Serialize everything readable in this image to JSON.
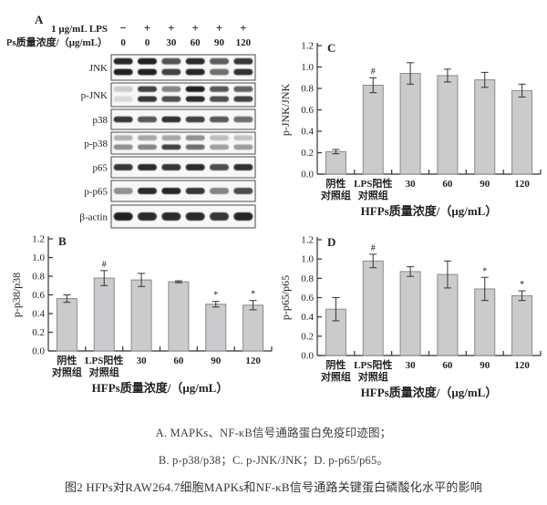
{
  "panel_a": {
    "label": "A",
    "header_rows": [
      {
        "label": "1 μg/mL LPS",
        "values": [
          "−",
          "+",
          "+",
          "+",
          "+",
          "+"
        ]
      },
      {
        "label": "HFPs质量浓度/（μg/mL）",
        "values": [
          "0",
          "0",
          "30",
          "60",
          "90",
          "120"
        ]
      }
    ],
    "blot_rows": [
      {
        "label": "JNK",
        "bands": "double",
        "lanes": [
          [
            0.92,
            0.95
          ],
          [
            0.95,
            0.95
          ],
          [
            0.72,
            0.8
          ],
          [
            0.9,
            0.92
          ],
          [
            0.68,
            0.6
          ],
          [
            0.85,
            0.88
          ]
        ]
      },
      {
        "label": "p-JNK",
        "bands": "double",
        "lanes": [
          [
            0.18,
            0.12
          ],
          [
            0.8,
            0.85
          ],
          [
            0.5,
            0.75
          ],
          [
            0.95,
            0.9
          ],
          [
            0.7,
            0.75
          ],
          [
            0.65,
            0.8
          ]
        ]
      },
      {
        "label": "p38",
        "bands": "single",
        "lanes": [
          0.85,
          0.7,
          0.88,
          0.8,
          0.7,
          0.6
        ]
      },
      {
        "label": "p-p38",
        "bands": "double",
        "lanes": [
          [
            0.3,
            0.45
          ],
          [
            0.35,
            0.5
          ],
          [
            0.35,
            0.8
          ],
          [
            0.45,
            0.6
          ],
          [
            0.25,
            0.38
          ],
          [
            0.22,
            0.4
          ]
        ]
      },
      {
        "label": "p65",
        "bands": "single",
        "lanes": [
          0.85,
          0.9,
          0.85,
          0.9,
          0.75,
          0.88
        ]
      },
      {
        "label": "p-p65",
        "bands": "single",
        "lanes": [
          0.45,
          0.9,
          0.92,
          0.85,
          0.5,
          0.75
        ]
      },
      {
        "label": "β-actin",
        "bands": "single",
        "lanes": [
          0.95,
          0.9,
          0.9,
          0.9,
          0.85,
          0.92
        ]
      }
    ]
  },
  "chart_data": [
    {
      "id": "B",
      "type": "bar",
      "panel_label": "B",
      "title": "",
      "ylabel": "p-p38/p38",
      "xlabel": "HFPs质量浓度/（μg/mL）",
      "categories": [
        [
          "阴性",
          "对照组"
        ],
        [
          "LPS阳性",
          "对照组"
        ],
        [
          "30"
        ],
        [
          "60"
        ],
        [
          "90"
        ],
        [
          "120"
        ]
      ],
      "values": [
        0.56,
        0.78,
        0.76,
        0.74,
        0.5,
        0.49
      ],
      "errors": [
        0.04,
        0.08,
        0.07,
        0.01,
        0.03,
        0.05
      ],
      "annotations": [
        "",
        "#",
        "",
        "",
        "*",
        "*"
      ],
      "ylim": [
        0,
        1.2
      ],
      "ytick_step": 0.2,
      "grid": false,
      "legend": "none"
    },
    {
      "id": "C",
      "type": "bar",
      "panel_label": "C",
      "title": "",
      "ylabel": "p-JNK/JNK",
      "xlabel": "HFPs质量浓度/（μg/mL）",
      "categories": [
        [
          "阴性",
          "对照组"
        ],
        [
          "LPS阳性",
          "对照组"
        ],
        [
          "30"
        ],
        [
          "60"
        ],
        [
          "90"
        ],
        [
          "120"
        ]
      ],
      "values": [
        0.21,
        0.83,
        0.94,
        0.92,
        0.88,
        0.78
      ],
      "errors": [
        0.02,
        0.07,
        0.1,
        0.06,
        0.07,
        0.06
      ],
      "annotations": [
        "",
        "#",
        "",
        "",
        "",
        ""
      ],
      "ylim": [
        0,
        1.2
      ],
      "ytick_step": 0.2,
      "grid": false,
      "legend": "none"
    },
    {
      "id": "D",
      "type": "bar",
      "panel_label": "D",
      "title": "",
      "ylabel": "p-p65/p65",
      "xlabel": "HFPs质量浓度/（μg/mL）",
      "categories": [
        [
          "阴性",
          "对照组"
        ],
        [
          "LPS阳性",
          "对照组"
        ],
        [
          "30"
        ],
        [
          "60"
        ],
        [
          "90"
        ],
        [
          "120"
        ]
      ],
      "values": [
        0.48,
        0.98,
        0.87,
        0.84,
        0.69,
        0.62
      ],
      "errors": [
        0.12,
        0.07,
        0.05,
        0.14,
        0.12,
        0.05
      ],
      "annotations": [
        "",
        "#",
        "",
        "",
        "*",
        "*"
      ],
      "ylim": [
        0,
        1.2
      ],
      "ytick_step": 0.2,
      "grid": false,
      "legend": "none"
    }
  ],
  "captions": [
    "A. MAPKs、NF-κB信号通路蛋白免疫印迹图；",
    "B. p-p38/p38；C. p-JNK/JNK；D. p-p65/p65。",
    "图2 HFPs对RAW264.7细胞MAPKs和NF-κB信号通路关键蛋白磷酸化水平的影响"
  ],
  "colors": {
    "bar_fill": "#cbcbcd",
    "bar_stroke": "#8a8a8a",
    "axis": "#333333",
    "band": "#121212",
    "blot_bg": "#f7f7f5",
    "blot_border": "#4a4a4a",
    "text": "#222222",
    "caption": "#3a3a3a"
  }
}
